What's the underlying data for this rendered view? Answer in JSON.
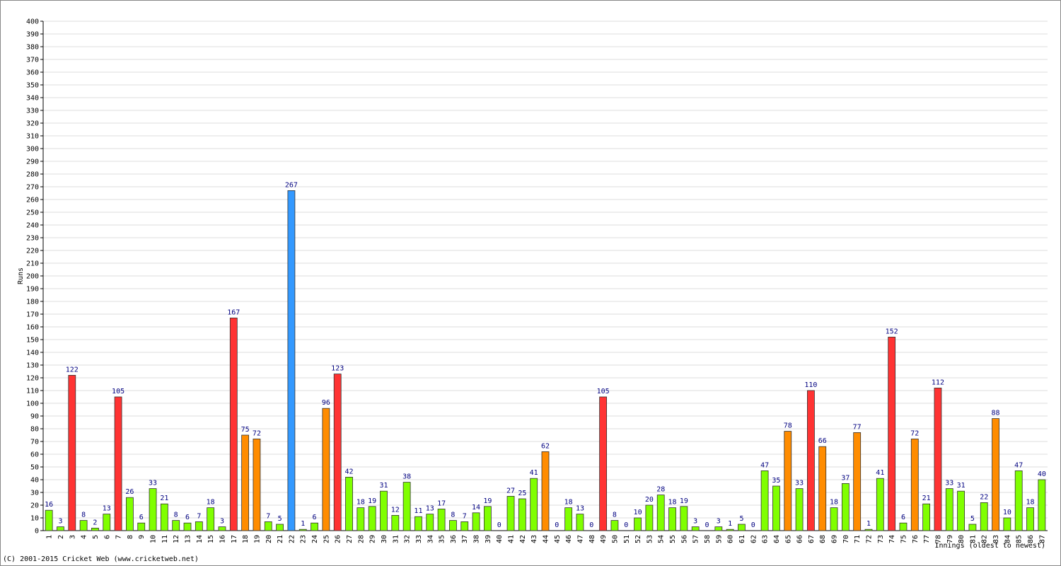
{
  "chart_data": {
    "type": "bar",
    "y_label": "Runs",
    "x_label": "Innings (oldest to newest)",
    "footer": "(C) 2001-2015 Cricket Web (www.cricketweb.net)",
    "categories": [
      "1",
      "2",
      "3",
      "4",
      "5",
      "6",
      "7",
      "8",
      "9",
      "10",
      "11",
      "12",
      "13",
      "14",
      "15",
      "16",
      "17",
      "18",
      "19",
      "20",
      "21",
      "22",
      "23",
      "24",
      "25",
      "26",
      "27",
      "28",
      "29",
      "30",
      "31",
      "32",
      "33",
      "34",
      "35",
      "36",
      "37",
      "38",
      "39",
      "40",
      "41",
      "42",
      "43",
      "44",
      "45",
      "46",
      "47",
      "48",
      "49",
      "50",
      "51",
      "52",
      "53",
      "54",
      "55",
      "56",
      "57",
      "58",
      "59",
      "60",
      "61",
      "62",
      "63",
      "64",
      "65",
      "66",
      "67",
      "68",
      "69",
      "70",
      "71",
      "72",
      "73",
      "74",
      "75",
      "76",
      "77",
      "78",
      "79",
      "80",
      "81",
      "82",
      "83",
      "84",
      "85",
      "86",
      "87"
    ],
    "values": [
      16,
      3,
      122,
      8,
      2,
      13,
      105,
      26,
      6,
      33,
      21,
      8,
      6,
      7,
      18,
      3,
      167,
      75,
      72,
      7,
      5,
      267,
      1,
      6,
      96,
      123,
      42,
      18,
      19,
      31,
      12,
      38,
      11,
      13,
      17,
      8,
      7,
      14,
      19,
      0,
      27,
      25,
      41,
      62,
      0,
      18,
      13,
      0,
      105,
      8,
      0,
      10,
      20,
      28,
      18,
      19,
      3,
      0,
      3,
      1,
      5,
      0,
      47,
      35,
      78,
      33,
      110,
      66,
      18,
      37,
      77,
      1,
      41,
      152,
      6,
      72,
      21,
      112,
      33,
      31,
      5,
      22,
      88,
      10,
      47,
      18,
      40
    ],
    "colors": [
      "#80ff00",
      "#80ff00",
      "#ff3333",
      "#80ff00",
      "#80ff00",
      "#80ff00",
      "#ff3333",
      "#80ff00",
      "#80ff00",
      "#80ff00",
      "#80ff00",
      "#80ff00",
      "#80ff00",
      "#80ff00",
      "#80ff00",
      "#80ff00",
      "#ff3333",
      "#ff8c00",
      "#ff8c00",
      "#80ff00",
      "#80ff00",
      "#3399ff",
      "#80ff00",
      "#80ff00",
      "#ff8c00",
      "#ff3333",
      "#80ff00",
      "#80ff00",
      "#80ff00",
      "#80ff00",
      "#80ff00",
      "#80ff00",
      "#80ff00",
      "#80ff00",
      "#80ff00",
      "#80ff00",
      "#80ff00",
      "#80ff00",
      "#80ff00",
      "#80ff00",
      "#80ff00",
      "#80ff00",
      "#80ff00",
      "#ff8c00",
      "#80ff00",
      "#80ff00",
      "#80ff00",
      "#80ff00",
      "#ff3333",
      "#80ff00",
      "#80ff00",
      "#80ff00",
      "#80ff00",
      "#80ff00",
      "#80ff00",
      "#80ff00",
      "#80ff00",
      "#80ff00",
      "#80ff00",
      "#80ff00",
      "#80ff00",
      "#80ff00",
      "#80ff00",
      "#80ff00",
      "#ff8c00",
      "#80ff00",
      "#ff3333",
      "#ff8c00",
      "#80ff00",
      "#80ff00",
      "#ff8c00",
      "#80ff00",
      "#80ff00",
      "#ff3333",
      "#80ff00",
      "#ff8c00",
      "#80ff00",
      "#ff3333",
      "#80ff00",
      "#80ff00",
      "#80ff00",
      "#80ff00",
      "#ff8c00",
      "#80ff00",
      "#80ff00",
      "#80ff00",
      "#80ff00"
    ],
    "ylim": [
      0,
      400
    ],
    "yticks": [
      0,
      10,
      20,
      30,
      40,
      50,
      60,
      70,
      80,
      90,
      100,
      110,
      120,
      130,
      140,
      150,
      160,
      170,
      180,
      190,
      200,
      210,
      220,
      230,
      240,
      250,
      260,
      270,
      280,
      290,
      300,
      310,
      320,
      330,
      340,
      350,
      360,
      370,
      380,
      390,
      400
    ],
    "grid": true
  }
}
